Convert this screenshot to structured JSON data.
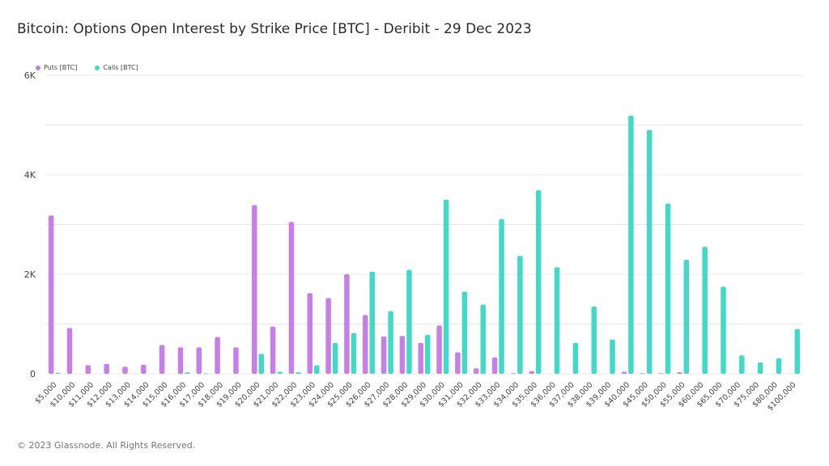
{
  "title": "Bitcoin: Options Open Interest by Strike Price [BTC] - Deribit - 29 Dec 2023",
  "footer": "© 2023 Glassnode. All Rights Reserved.",
  "colors": {
    "puts": "#c77ee6",
    "calls": "#43d9c8",
    "grid": "#e9e9e9"
  },
  "chart_data": {
    "type": "bar",
    "title": "Bitcoin: Options Open Interest by Strike Price [BTC] - Deribit - 29 Dec 2023",
    "xlabel": "",
    "ylabel": "",
    "ylim": [
      0,
      6000
    ],
    "yticks": [
      {
        "value": 0,
        "label": "0"
      },
      {
        "value": 2000,
        "label": "2K"
      },
      {
        "value": 4000,
        "label": "4K"
      },
      {
        "value": 6000,
        "label": "6K"
      }
    ],
    "grid": true,
    "legend": "top-left",
    "categories": [
      "$5,000",
      "$10,000",
      "$11,000",
      "$12,000",
      "$13,000",
      "$14,000",
      "$15,000",
      "$16,000",
      "$17,000",
      "$18,000",
      "$19,000",
      "$20,000",
      "$21,000",
      "$22,000",
      "$23,000",
      "$24,000",
      "$25,000",
      "$26,000",
      "$27,000",
      "$28,000",
      "$29,000",
      "$30,000",
      "$31,000",
      "$32,000",
      "$33,000",
      "$34,000",
      "$35,000",
      "$36,000",
      "$37,000",
      "$38,000",
      "$39,000",
      "$40,000",
      "$45,000",
      "$50,000",
      "$55,000",
      "$60,000",
      "$65,000",
      "$70,000",
      "$75,000",
      "$80,000",
      "$100,000"
    ],
    "series": [
      {
        "name": "Puts [BTC]",
        "color": "#c77ee6",
        "values": [
          3180,
          920,
          170,
          200,
          140,
          180,
          580,
          530,
          530,
          740,
          530,
          3390,
          950,
          3050,
          1620,
          1520,
          2000,
          1180,
          750,
          760,
          620,
          970,
          430,
          110,
          330,
          10,
          50,
          0,
          0,
          0,
          0,
          40,
          10,
          10,
          30,
          0,
          0,
          0,
          0,
          0,
          0
        ]
      },
      {
        "name": "Calls [BTC]",
        "color": "#43d9c8",
        "values": [
          20,
          0,
          0,
          0,
          0,
          0,
          0,
          30,
          10,
          0,
          0,
          400,
          40,
          30,
          170,
          620,
          820,
          2050,
          1260,
          2090,
          780,
          3500,
          1650,
          1390,
          3110,
          2370,
          3690,
          2140,
          620,
          1350,
          690,
          5190,
          4900,
          3420,
          2290,
          2550,
          1750,
          370,
          230,
          310,
          900
        ]
      }
    ]
  }
}
